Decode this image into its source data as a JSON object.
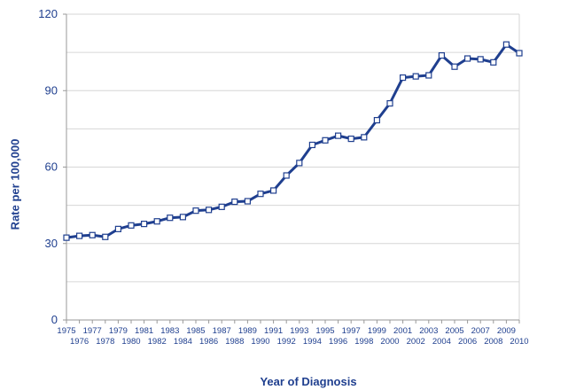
{
  "chart_data": {
    "type": "line",
    "title": "",
    "xlabel": "Year of Diagnosis",
    "ylabel": "Rate per 100,000",
    "ylim": [
      0,
      120
    ],
    "yticks": [
      0,
      30,
      60,
      90,
      120
    ],
    "grid": true,
    "x": [
      1975,
      1976,
      1977,
      1978,
      1979,
      1980,
      1981,
      1982,
      1983,
      1984,
      1985,
      1986,
      1987,
      1988,
      1989,
      1990,
      1991,
      1992,
      1993,
      1994,
      1995,
      1996,
      1997,
      1998,
      1999,
      2000,
      2001,
      2002,
      2003,
      2004,
      2005,
      2006,
      2007,
      2008,
      2009,
      2010
    ],
    "x_tick_labels": [
      "1975",
      "1976",
      "1977",
      "1978",
      "1979",
      "1980",
      "1981",
      "1982",
      "1983",
      "1984",
      "1985",
      "1986",
      "1987",
      "1988",
      "1989",
      "1990",
      "1991",
      "1992",
      "1993",
      "1994",
      "1995",
      "1996",
      "1997",
      "1998",
      "1999",
      "2000",
      "2001",
      "2002",
      "2003",
      "2004",
      "2005",
      "2006",
      "2007",
      "2008",
      "2009",
      "2010"
    ],
    "series": [
      {
        "color": "#1f3f8f",
        "marker": "square",
        "values": [
          32.3,
          33.0,
          33.3,
          32.6,
          35.7,
          37.1,
          37.7,
          38.7,
          40.1,
          40.4,
          42.9,
          43.2,
          44.4,
          46.4,
          46.6,
          49.5,
          50.8,
          56.7,
          61.6,
          68.7,
          70.5,
          72.3,
          71.1,
          71.7,
          78.4,
          85.0,
          95.1,
          95.6,
          96.0,
          103.8,
          99.4,
          102.6,
          102.3,
          101.1,
          108.1,
          104.7
        ]
      }
    ]
  }
}
